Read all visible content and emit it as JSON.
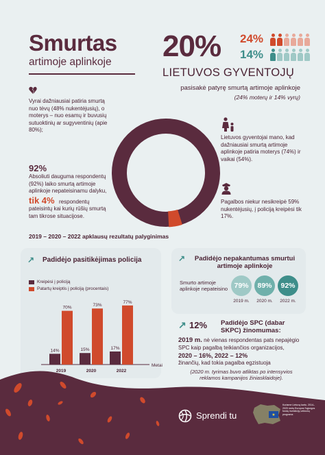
{
  "header": {
    "title": "Smurtas",
    "subtitle": "artimoje aplinkoje",
    "big_percent": "20%",
    "women_percent": "24%",
    "men_percent": "14%",
    "heading": "LIETUVOS GYVENTOJŲ",
    "subheading": "pasisakė patyrę smurtą artimoje aplinkoje",
    "note": "(24% moterų ir 14% vyrų)"
  },
  "colors": {
    "brand": "#5a2b3e",
    "accent_red": "#d04a2c",
    "teal": "#3e8e8a",
    "light_teal": "#9fc9c6",
    "light_red": "#e8a99a",
    "background": "#eaf0f1"
  },
  "left_texts": {
    "victims": "Vyrai dažniausiai patiria smurtą nuo tėvų (48% nukentėjusių), o moterys – nuo esamų ir buvusių sutuoktinių ar sugyventinių (apie 80%);",
    "pct92": "92%",
    "pct92_text": "Absoliuti dauguma respondentų (92%) laiko smurtą artimoje aplinkoje nepateisinamu dalyku,",
    "pct4": "tik 4%",
    "pct4_text1": "respondentų",
    "pct4_text2": "pateisintų kai kurių rūšių smurtą tam tikrose situacijose."
  },
  "right_texts": {
    "family": "Lietuvos gyventojai mano, kad dažniausiai smurtą artimoje aplinkoje patiria moterys (74%) ir vaikai (54%).",
    "police": "Pagalbos niekur nesikreipė 59% nukentėjusių, į policiją kreipėsi tik 17%."
  },
  "donut": {
    "highlight_percent": 4
  },
  "comparison": {
    "title": "2019 – 2020 – 2022 apklausų rezultatų palyginimas"
  },
  "chart_data": {
    "type": "bar",
    "title": "Padidėjo pasitikėjimas policija",
    "categories": [
      "2019",
      "2020",
      "2022"
    ],
    "xlabel": "Metai",
    "series": [
      {
        "name": "Kreipėsi į policiją",
        "values": [
          14,
          15,
          17
        ],
        "color": "#5a2b3e"
      },
      {
        "name": "Patartų kreiptis į policiją (procentais)",
        "values": [
          70,
          73,
          77
        ],
        "color": "#d04a2c"
      }
    ],
    "ylim": [
      0,
      100
    ],
    "legend": "top-left"
  },
  "intolerance": {
    "title": "Padidėjo nepakantumas smurtui artimoje aplinkoje",
    "row_label": "Smurto artimoje aplinkoje nepateisino",
    "values": [
      {
        "value": "79%",
        "year": "2019 m.",
        "color": "#9fc9c6"
      },
      {
        "value": "89%",
        "year": "2020 m.",
        "color": "#6fb0ab"
      },
      {
        "value": "92%",
        "year": "2022 m.",
        "color": "#3e8e8a"
      }
    ]
  },
  "spc": {
    "percent": "12%",
    "title": "Padidėjo SPC (dabar SKPC) žinomumas:",
    "year_bold": "2019 m.",
    "text1": "nė vienas respondentas pats nepajėgio SPC kaip pagalbą teikiančios organizacijos,",
    "line2": "2020 – 16%, 2022 – 12%",
    "text2": "žinančių, kad tokia pagalba egzistuoja",
    "note": "(2020 m. tyrimas buvo atliktas po intensyvios reklamos kampanijos žiniasklaidoje)."
  },
  "footer": {
    "brand": "Sprendi tu",
    "flag_text": "Kuriame Lietuvą kartu. 2014–2020 metų Europos Sąjungos fondų investicijų veiksmų programa"
  }
}
